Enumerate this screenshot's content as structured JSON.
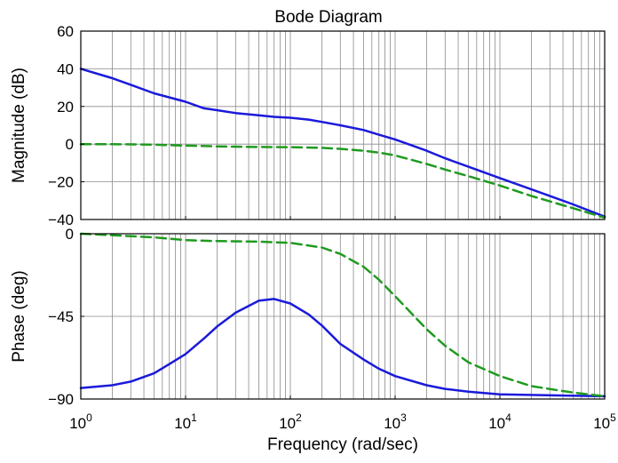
{
  "chart_data": {
    "type": "line",
    "title": "Bode Diagram",
    "xlabel": "Frequency (rad/sec)",
    "x_scale": "log",
    "xlim": [
      1,
      100000
    ],
    "x_ticks": [
      {
        "value": 1,
        "base": "10",
        "exp": "0"
      },
      {
        "value": 10,
        "base": "10",
        "exp": "1"
      },
      {
        "value": 100,
        "base": "10",
        "exp": "2"
      },
      {
        "value": 1000,
        "base": "10",
        "exp": "3"
      },
      {
        "value": 10000,
        "base": "10",
        "exp": "4"
      },
      {
        "value": 100000,
        "base": "10",
        "exp": "5"
      }
    ],
    "grid": true,
    "panels": [
      {
        "name": "magnitude",
        "ylabel": "Magnitude (dB)",
        "ylim": [
          -40,
          60
        ],
        "yticks": [
          60,
          40,
          20,
          0,
          -20,
          -40
        ],
        "ytick_labels": [
          "60",
          "40",
          "20",
          "0",
          "−20",
          "−40"
        ],
        "series": [
          {
            "color": "#1a1adb",
            "style": "solid",
            "x": [
              1,
              2,
              3,
              5,
              10,
              15,
              20,
              30,
              50,
              70,
              100,
              150,
              200,
              300,
              500,
              700,
              1000,
              2000,
              3000,
              5000,
              10000,
              20000,
              50000,
              100000
            ],
            "y": [
              40,
              35,
              31.5,
              27,
              22.5,
              19,
              18,
              16.5,
              15.3,
              14.5,
              14,
              13,
              11.8,
              10,
              7.5,
              5,
              2.5,
              -3.5,
              -7.5,
              -12,
              -18,
              -24,
              -32,
              -38.5
            ]
          },
          {
            "color": "#1f9a1f",
            "style": "dashed",
            "x": [
              1,
              2,
              5,
              10,
              20,
              50,
              100,
              200,
              300,
              500,
              700,
              1000,
              2000,
              3000,
              5000,
              10000,
              20000,
              50000,
              100000
            ],
            "y": [
              0,
              0,
              -0.3,
              -0.8,
              -1.2,
              -1.5,
              -1.6,
              -2.0,
              -2.5,
              -3.5,
              -4.5,
              -6,
              -10.5,
              -13.5,
              -17,
              -22,
              -27.5,
              -34,
              -39
            ]
          }
        ]
      },
      {
        "name": "phase",
        "ylabel": "Phase (deg)",
        "ylim": [
          -90,
          0
        ],
        "yticks": [
          0,
          -45,
          -90
        ],
        "ytick_labels": [
          "0",
          "−45",
          "−90"
        ],
        "series": [
          {
            "color": "#1a1adb",
            "style": "solid",
            "x": [
              1,
              2,
              3,
              5,
              7,
              10,
              15,
              20,
              30,
              50,
              70,
              100,
              150,
              200,
              300,
              500,
              700,
              1000,
              2000,
              3000,
              5000,
              10000,
              100000
            ],
            "y": [
              -84,
              -82.5,
              -80.5,
              -76,
              -71,
              -65.5,
              -57,
              -50.5,
              -43,
              -36.5,
              -35.5,
              -38,
              -44,
              -50,
              -60,
              -68.5,
              -73.5,
              -77.5,
              -82.5,
              -84.5,
              -86,
              -87.5,
              -88.5
            ]
          },
          {
            "color": "#1f9a1f",
            "style": "dashed",
            "x": [
              1,
              2,
              5,
              10,
              20,
              50,
              100,
              200,
              300,
              500,
              700,
              1000,
              2000,
              3000,
              5000,
              10000,
              20000,
              50000,
              100000
            ],
            "y": [
              0,
              -0.8,
              -2,
              -3.5,
              -4,
              -4.3,
              -5,
              -7.5,
              -11,
              -18,
              -25,
              -34,
              -52,
              -61,
              -70,
              -77.5,
              -83,
              -86.5,
              -88.5
            ]
          }
        ]
      }
    ]
  }
}
